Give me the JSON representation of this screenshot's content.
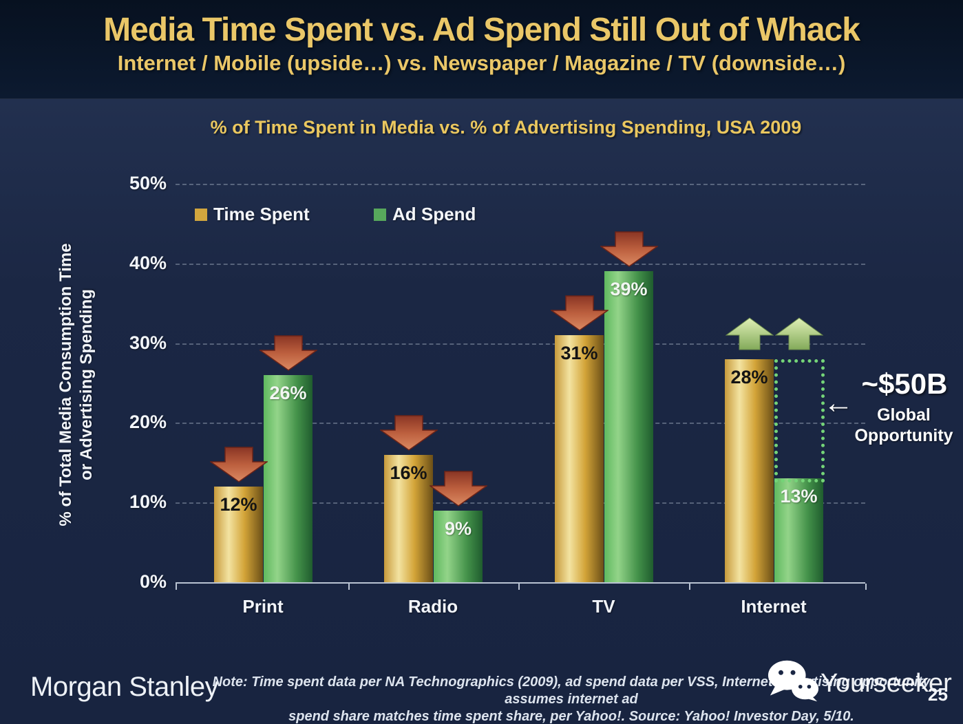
{
  "slide": {
    "title": "Media Time Spent vs. Ad Spend Still Out of Whack",
    "subtitle": "Internet / Mobile (upside…) vs. Newspaper / Magazine / TV (downside…)",
    "footer_logo": "Morgan Stanley",
    "note_line1": "Note: Time spent data per NA Technographics (2009), ad spend data per VSS, Internet advertising opportunity assumes internet ad",
    "note_line2": "spend share matches time spent share, per Yahoo!. Source: Yahoo! Investor Day, 5/10.",
    "watermark_text": "Yourseeker",
    "watermark_icon": "wechat-icon",
    "page_number": "25"
  },
  "chart_data": {
    "type": "bar",
    "title": "% of Time Spent in Media vs. % of Advertising Spending, USA 2009",
    "ylabel_line1": "% of Total Media Consumption Time",
    "ylabel_line2": "or Advertising Spending",
    "categories": [
      "Print",
      "Radio",
      "TV",
      "Internet"
    ],
    "series": [
      {
        "name": "Time Spent",
        "color": "#d2a63e",
        "values": [
          12,
          16,
          31,
          28
        ],
        "labels": [
          "12%",
          "16%",
          "31%",
          "28%"
        ],
        "trend": [
          "down",
          "down",
          "down",
          "up"
        ]
      },
      {
        "name": "Ad Spend",
        "color": "#57a85c",
        "values": [
          26,
          9,
          39,
          13
        ],
        "labels": [
          "26%",
          "9%",
          "39%",
          "13%"
        ],
        "trend": [
          "down",
          "down",
          "down",
          "up"
        ]
      }
    ],
    "ylim": [
      0,
      50
    ],
    "yticks": [
      "0%",
      "10%",
      "20%",
      "30%",
      "40%",
      "50%"
    ],
    "grid": "dashed-horizontal",
    "legend_position": "top-left",
    "trend_icons": {
      "down": "down-arrow-icon",
      "up": "up-arrow-icon"
    },
    "annotation": {
      "value": "~$50B",
      "label_line1": "Global",
      "label_line2": "Opportunity",
      "left_arrow_icon": "←",
      "box": "dotted rectangle over Internet Ad Spend bar spanning 28% down to 13%"
    }
  }
}
